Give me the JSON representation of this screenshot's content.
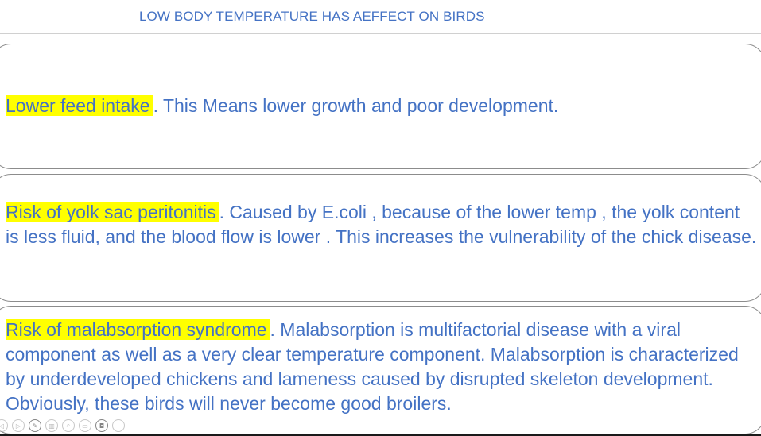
{
  "slide": {
    "title": "LOW BODY TEMPERATURE HAS AEFFECT ON BIRDS"
  },
  "cards": [
    {
      "highlight": "Lower feed intake",
      "text": ". This Means lower growth and poor development."
    },
    {
      "highlight": "Risk of yolk sac peritonitis",
      "text": ". Caused by E.coli , because of the lower temp , the yolk content is less fluid, and the blood flow is lower . This increases the vulnerability of the chick disease."
    },
    {
      "highlight": "Risk of malabsorption syndrome",
      "text": ". Malabsorption is multifactorial disease with a viral component as well as a very clear temperature component. Malabsorption is characterized by underdeveloped chickens and lameness caused by disrupted skeleton development. Obviously, these birds will never become good broilers."
    }
  ],
  "toolbar": {
    "buttons": [
      {
        "icon": "back-arrow-icon",
        "glyph": "◁"
      },
      {
        "icon": "forward-arrow-icon",
        "glyph": "▷"
      },
      {
        "icon": "pen-icon",
        "glyph": "✎"
      },
      {
        "icon": "copy-slides-icon",
        "glyph": "▥"
      },
      {
        "icon": "zoom-icon",
        "glyph": "⌕"
      },
      {
        "icon": "subtitles-icon",
        "glyph": "▭"
      },
      {
        "icon": "camera-icon",
        "glyph": "◘"
      },
      {
        "icon": "more-options-icon",
        "glyph": "⋯"
      }
    ]
  },
  "colors": {
    "text": "#4472c4",
    "highlight": "#ffff00",
    "card_border": "#8c8c8c"
  }
}
